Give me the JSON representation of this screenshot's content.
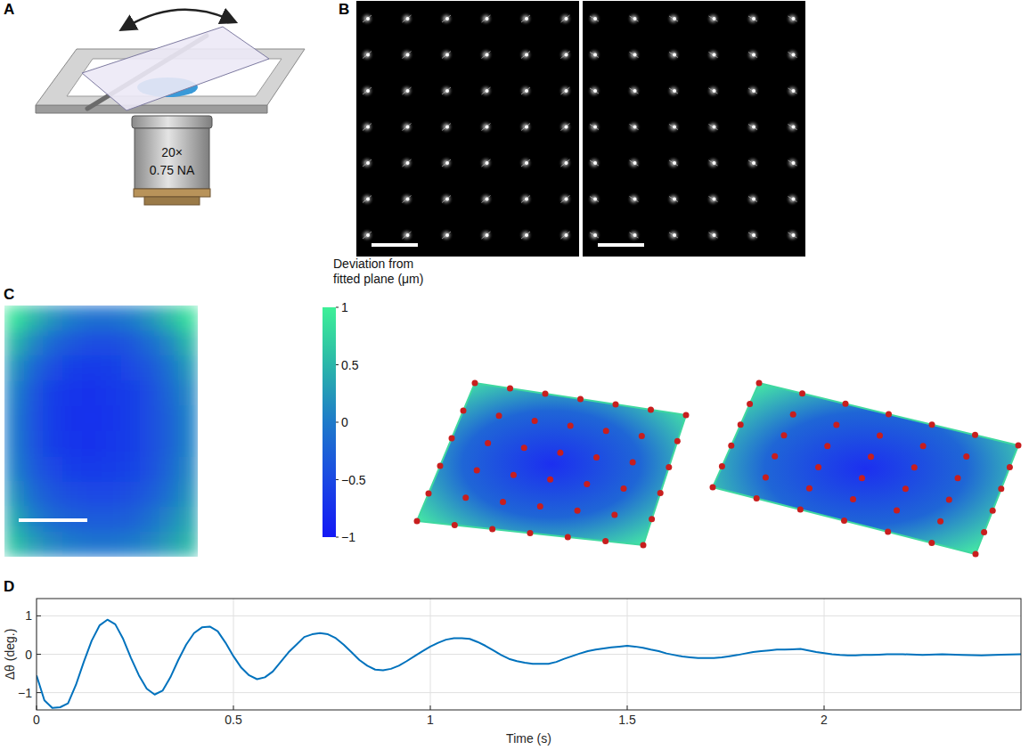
{
  "panel_labels": [
    "A",
    "B",
    "C",
    "D"
  ],
  "schematic": {
    "objective": [
      "20×",
      "0.75 NA"
    ]
  },
  "chart_data": [
    {
      "type": "heatmap",
      "cells": [
        [
          0.9,
          0.5,
          0.2,
          0.0,
          -0.1,
          -0.1,
          0.0,
          0.2,
          0.5,
          0.85
        ],
        [
          0.5,
          0.1,
          -0.2,
          -0.35,
          -0.45,
          -0.45,
          -0.35,
          -0.15,
          0.1,
          0.5
        ],
        [
          0.2,
          -0.2,
          -0.45,
          -0.6,
          -0.65,
          -0.6,
          -0.5,
          -0.35,
          -0.1,
          0.25
        ],
        [
          0.05,
          -0.35,
          -0.6,
          -0.7,
          -0.72,
          -0.68,
          -0.6,
          -0.45,
          -0.2,
          0.1
        ],
        [
          0.0,
          -0.4,
          -0.62,
          -0.72,
          -0.75,
          -0.7,
          -0.6,
          -0.45,
          -0.25,
          0.05
        ],
        [
          0.0,
          -0.38,
          -0.6,
          -0.7,
          -0.72,
          -0.68,
          -0.6,
          -0.45,
          -0.25,
          0.05
        ],
        [
          0.05,
          -0.3,
          -0.5,
          -0.62,
          -0.65,
          -0.62,
          -0.55,
          -0.42,
          -0.2,
          0.1
        ],
        [
          0.2,
          -0.15,
          -0.35,
          -0.45,
          -0.5,
          -0.5,
          -0.42,
          -0.3,
          -0.1,
          0.2
        ],
        [
          0.4,
          0.05,
          -0.15,
          -0.25,
          -0.3,
          -0.3,
          -0.25,
          -0.1,
          0.1,
          0.35
        ],
        [
          0.6,
          0.3,
          0.1,
          0.0,
          -0.05,
          -0.05,
          0.0,
          0.1,
          0.3,
          0.5
        ]
      ],
      "colorbar": {
        "title": "Deviation from fitted plane (μm)",
        "range": [
          -1,
          1
        ],
        "ticks": [
          1,
          0.5,
          0,
          {
            "value": -0.5,
            "label": "−0.5"
          },
          {
            "value": -1,
            "label": "−1"
          }
        ]
      }
    },
    {
      "type": "line",
      "x": [
        0,
        0.02,
        0.04,
        0.06,
        0.08,
        0.1,
        0.12,
        0.14,
        0.16,
        0.18,
        0.2,
        0.22,
        0.24,
        0.26,
        0.28,
        0.3,
        0.32,
        0.34,
        0.36,
        0.38,
        0.4,
        0.42,
        0.44,
        0.46,
        0.48,
        0.5,
        0.52,
        0.54,
        0.56,
        0.58,
        0.6,
        0.62,
        0.64,
        0.66,
        0.68,
        0.7,
        0.72,
        0.74,
        0.76,
        0.78,
        0.8,
        0.82,
        0.84,
        0.86,
        0.88,
        0.9,
        0.92,
        0.94,
        0.96,
        0.98,
        1.0,
        1.02,
        1.04,
        1.06,
        1.08,
        1.1,
        1.12,
        1.14,
        1.16,
        1.18,
        1.2,
        1.22,
        1.24,
        1.26,
        1.28,
        1.3,
        1.32,
        1.34,
        1.36,
        1.38,
        1.4,
        1.42,
        1.44,
        1.46,
        1.48,
        1.5,
        1.52,
        1.54,
        1.56,
        1.58,
        1.6,
        1.62,
        1.64,
        1.66,
        1.68,
        1.7,
        1.72,
        1.74,
        1.76,
        1.78,
        1.8,
        1.82,
        1.84,
        1.86,
        1.88,
        1.9,
        1.92,
        1.94,
        1.96,
        1.98,
        2.0,
        2.02,
        2.04,
        2.06,
        2.08,
        2.1,
        2.12,
        2.14,
        2.16,
        2.18,
        2.2,
        2.25,
        2.3,
        2.35,
        2.4,
        2.45,
        2.5
      ],
      "series": [
        {
          "color": "#0072bd",
          "values": [
            -0.55,
            -1.2,
            -1.4,
            -1.38,
            -1.28,
            -0.8,
            -0.2,
            0.35,
            0.75,
            0.9,
            0.78,
            0.4,
            -0.1,
            -0.55,
            -0.9,
            -1.05,
            -0.95,
            -0.6,
            -0.15,
            0.25,
            0.55,
            0.7,
            0.72,
            0.6,
            0.3,
            -0.05,
            -0.35,
            -0.55,
            -0.65,
            -0.6,
            -0.45,
            -0.2,
            0.05,
            0.25,
            0.45,
            0.52,
            0.55,
            0.52,
            0.42,
            0.25,
            0.05,
            -0.15,
            -0.3,
            -0.4,
            -0.42,
            -0.38,
            -0.3,
            -0.18,
            -0.05,
            0.08,
            0.2,
            0.3,
            0.38,
            0.42,
            0.42,
            0.4,
            0.32,
            0.22,
            0.1,
            -0.02,
            -0.12,
            -0.18,
            -0.22,
            -0.25,
            -0.25,
            -0.25,
            -0.2,
            -0.12,
            -0.05,
            0.02,
            0.08,
            0.12,
            0.15,
            0.18,
            0.2,
            0.22,
            0.2,
            0.17,
            0.12,
            0.08,
            0.02,
            -0.02,
            -0.06,
            -0.08,
            -0.1,
            -0.1,
            -0.1,
            -0.08,
            -0.05,
            -0.02,
            0.02,
            0.06,
            0.08,
            0.1,
            0.12,
            0.12,
            0.13,
            0.14,
            0.1,
            0.06,
            0.03,
            0.0,
            -0.02,
            -0.03,
            -0.03,
            -0.02,
            -0.02,
            -0.01,
            0.0,
            0.0,
            0.0,
            -0.02,
            0.0,
            -0.02,
            -0.03,
            -0.01,
            0.0
          ]
        }
      ],
      "xlim": [
        0,
        2.5
      ],
      "ylim": [
        -1.45,
        1.45
      ],
      "xticks": [
        0,
        0.5,
        1,
        1.5,
        2
      ],
      "yticks": [
        {
          "value": -1,
          "label": "−1"
        },
        0,
        1
      ],
      "xlabel": "Time (s)",
      "ylabel": "Δθ (deg.)",
      "grid": true
    }
  ]
}
